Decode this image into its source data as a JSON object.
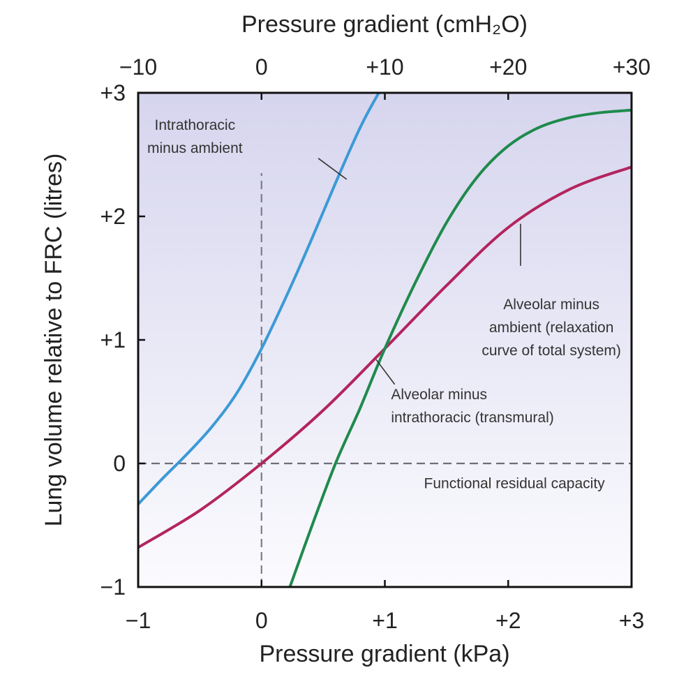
{
  "chart_data": {
    "type": "line",
    "x_bottom": {
      "label": "Pressure gradient (kPa)",
      "range": [
        -1,
        3
      ],
      "ticks": [
        -1,
        0,
        1,
        2,
        3
      ],
      "tick_labels": [
        "−1",
        "0",
        "+1",
        "+2",
        "+3"
      ]
    },
    "x_top": {
      "label": "Pressure gradient (cmH₂O)",
      "range": [
        -10,
        30
      ],
      "ticks": [
        -10,
        0,
        10,
        20,
        30
      ],
      "tick_labels": [
        "−10",
        "0",
        "+10",
        "+20",
        "+30"
      ]
    },
    "y": {
      "label": "Lung volume relative to FRC (litres)",
      "range": [
        -1,
        3
      ],
      "ticks": [
        -1,
        0,
        1,
        2,
        3
      ],
      "tick_labels": [
        "−1",
        "0",
        "+1",
        "+2",
        "+3"
      ]
    },
    "reference_lines": [
      {
        "orientation": "horizontal",
        "value": 0,
        "style": "dashed"
      },
      {
        "orientation": "vertical",
        "value": 0,
        "y_to": 2.35,
        "style": "dashed"
      }
    ],
    "series": [
      {
        "color": "#3b9ad6",
        "x": [
          -1.0,
          -0.8,
          -0.6,
          -0.4,
          -0.2,
          0.0,
          0.2,
          0.4,
          0.6,
          0.8,
          0.95
        ],
        "y": [
          -0.33,
          -0.12,
          0.08,
          0.3,
          0.57,
          0.93,
          1.35,
          1.8,
          2.27,
          2.72,
          3.0
        ]
      },
      {
        "color": "#b3245f",
        "x": [
          -1.0,
          -0.5,
          0.0,
          0.5,
          1.0,
          1.5,
          2.0,
          2.5,
          3.0
        ],
        "y": [
          -0.68,
          -0.38,
          0.0,
          0.43,
          0.93,
          1.44,
          1.91,
          2.22,
          2.4
        ]
      },
      {
        "color": "#1f8a4c",
        "x": [
          0.23,
          0.4,
          0.6,
          0.8,
          1.0,
          1.25,
          1.5,
          1.75,
          2.0,
          2.25,
          2.5,
          2.75,
          3.0
        ],
        "y": [
          -1.0,
          -0.53,
          0.0,
          0.45,
          0.93,
          1.47,
          1.95,
          2.32,
          2.57,
          2.72,
          2.8,
          2.84,
          2.86
        ]
      }
    ],
    "annotations": [
      {
        "lines": [
          "Intrathoracic",
          "minus ambient"
        ],
        "x": -0.54,
        "y": 2.7,
        "anchor": "middle",
        "leader": [
          [
            0.46,
            2.47
          ],
          [
            0.69,
            2.3
          ]
        ]
      },
      {
        "lines": [
          "Alveolar minus",
          "ambient (relaxation",
          "curve of total system)"
        ],
        "x": 2.35,
        "y": 1.25,
        "anchor": "middle",
        "leader": [
          [
            2.1,
            1.6
          ],
          [
            2.1,
            1.94
          ]
        ]
      },
      {
        "lines": [
          "Alveolar minus",
          "intrathoracic (transmural)"
        ],
        "x": 1.05,
        "y": 0.52,
        "anchor": "start",
        "leader": [
          [
            1.08,
            0.64
          ],
          [
            0.93,
            0.84
          ]
        ]
      },
      {
        "lines": [
          "Functional residual capacity"
        ],
        "x": 2.05,
        "y": -0.2,
        "anchor": "middle"
      }
    ],
    "background": {
      "gradient_top": "#d6d5ee",
      "gradient_bottom": "#fbfbfe"
    }
  }
}
